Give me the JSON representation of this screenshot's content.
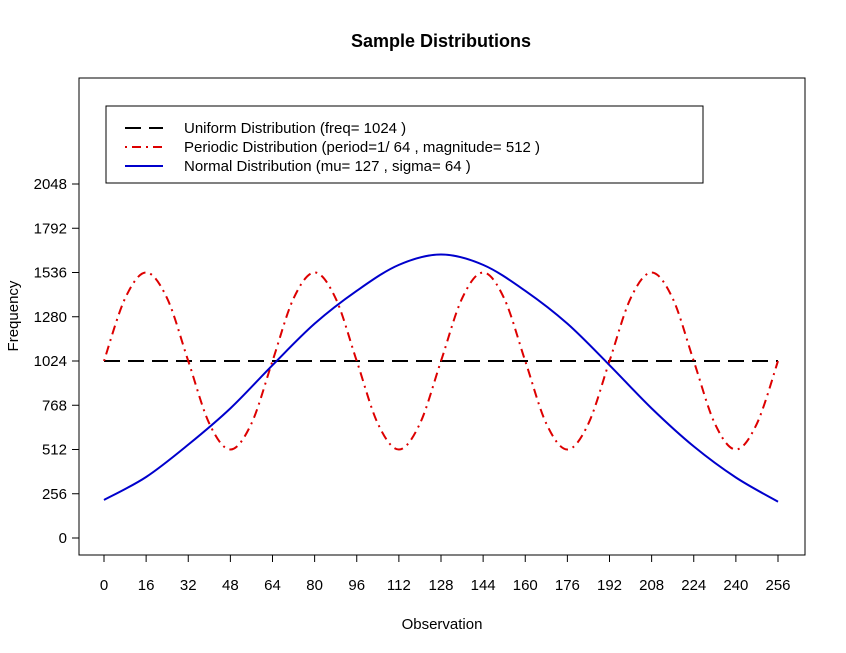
{
  "chart_data": {
    "type": "line",
    "title": "Sample Distributions",
    "xlabel": "Observation",
    "ylabel": "Frequency",
    "xlim": [
      0,
      256
    ],
    "ylim": [
      0,
      2048
    ],
    "x_ticks": [
      0,
      16,
      32,
      48,
      64,
      80,
      96,
      112,
      128,
      144,
      160,
      176,
      192,
      208,
      224,
      240,
      256
    ],
    "y_ticks": [
      0,
      256,
      512,
      768,
      1024,
      1280,
      1536,
      1792,
      2048
    ],
    "grid": false,
    "legend": {
      "placement": "top-left"
    },
    "series": [
      {
        "name": "Uniform Distribution (freq= 1024 )",
        "style": "dashed",
        "color": "#000000",
        "x": [
          0,
          256
        ],
        "y": [
          1024,
          1024
        ]
      },
      {
        "name": "Periodic Distribution (period=1/ 64 , magnitude= 512 )",
        "style": "dotdash",
        "color": "#dd0000",
        "x": [
          0,
          8,
          16,
          24,
          32,
          40,
          48,
          56,
          64,
          72,
          80,
          88,
          96,
          104,
          112,
          120,
          128,
          136,
          144,
          152,
          160,
          168,
          176,
          184,
          192,
          200,
          208,
          216,
          224,
          232,
          240,
          248,
          256
        ],
        "y": [
          1024,
          1386,
          1536,
          1386,
          1024,
          662,
          512,
          662,
          1024,
          1386,
          1536,
          1386,
          1024,
          662,
          512,
          662,
          1024,
          1386,
          1536,
          1386,
          1024,
          662,
          512,
          662,
          1024,
          1386,
          1536,
          1386,
          1024,
          662,
          512,
          662,
          1024
        ]
      },
      {
        "name": "Normal Distribution (mu= 127 , sigma= 64 )",
        "style": "solid",
        "color": "#0000cc",
        "x": [
          0,
          16,
          32,
          48,
          64,
          80,
          96,
          112,
          128,
          144,
          160,
          176,
          192,
          208,
          224,
          240,
          256
        ],
        "y": [
          220,
          353,
          540,
          750,
          1000,
          1240,
          1430,
          1580,
          1640,
          1580,
          1430,
          1240,
          1000,
          750,
          530,
          350,
          210
        ]
      }
    ]
  }
}
